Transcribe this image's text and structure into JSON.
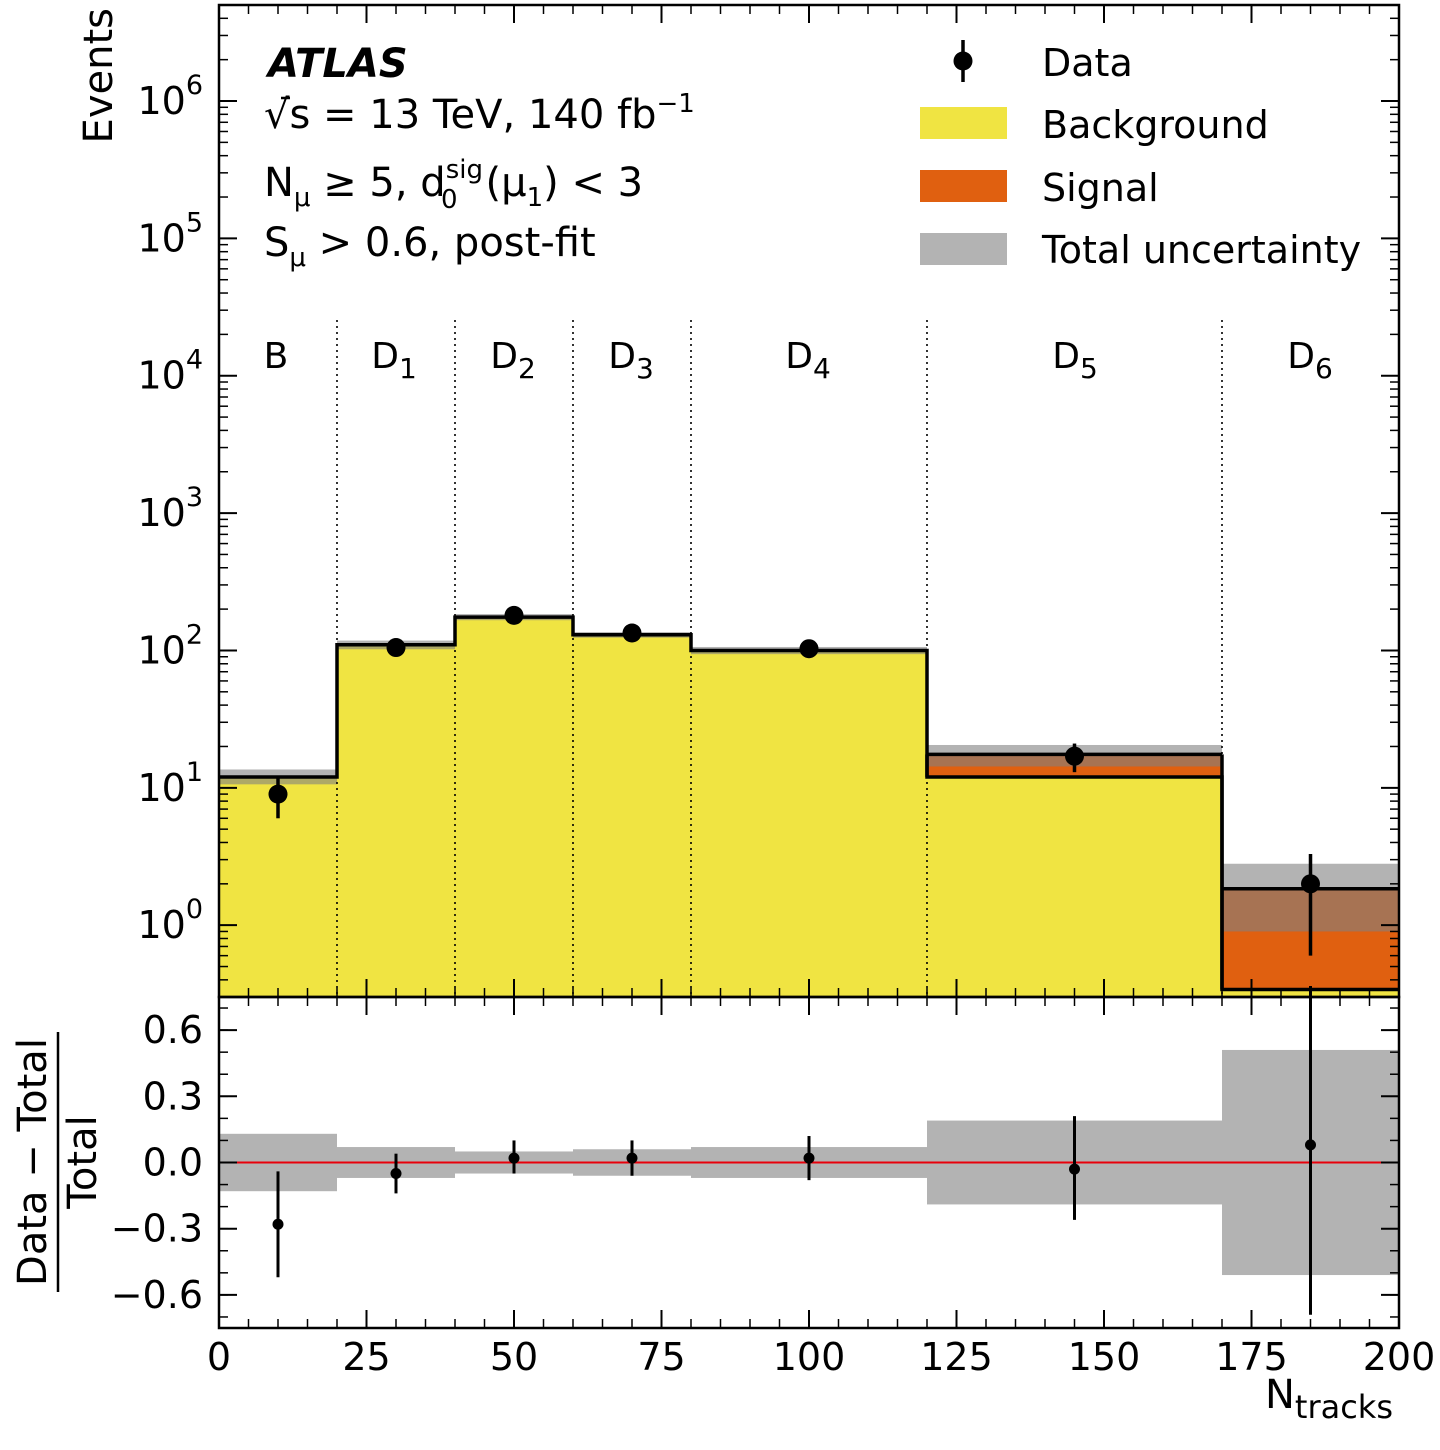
{
  "chart_data": [
    {
      "type": "histogram-stacked",
      "panel": "main",
      "ylabel": "Events",
      "yscale": "log",
      "ylim": [
        0.3,
        5000000
      ],
      "yticks": [
        1,
        10,
        100,
        1000,
        10000,
        100000,
        1000000
      ],
      "xlim": [
        0,
        200
      ],
      "bin_edges": [
        0,
        20,
        40,
        60,
        80,
        120,
        170,
        200
      ],
      "regions": [
        "B",
        "D1",
        "D2",
        "D3",
        "D4",
        "D5",
        "D6"
      ],
      "series": [
        {
          "name": "Background",
          "color": "#f0e442",
          "values": [
            12,
            110,
            175,
            130,
            100,
            12,
            0.34
          ]
        },
        {
          "name": "Signal",
          "color": "#e06010",
          "values": [
            0,
            0,
            0,
            0,
            0,
            5.5,
            1.5
          ]
        },
        {
          "name": "Total uncertainty",
          "color": "#b3b3b3",
          "low": [
            10.6,
            102,
            166,
            124,
            94,
            14.3,
            0.9
          ],
          "high": [
            13.6,
            118,
            184,
            136,
            106,
            20.5,
            2.8
          ]
        }
      ],
      "total": [
        12,
        110,
        175,
        130,
        100,
        17.5,
        1.84
      ],
      "data": {
        "name": "Data",
        "x": [
          10,
          30,
          50,
          70,
          100,
          145,
          185
        ],
        "y": [
          9,
          105,
          180,
          134,
          103,
          17,
          2
        ],
        "err_low": [
          6,
          95,
          167,
          122,
          93,
          13,
          0.6
        ],
        "err_high": [
          12,
          115,
          193,
          146,
          113,
          21,
          3.3
        ]
      },
      "legend": [
        "Data",
        "Background",
        "Signal",
        "Total uncertainty"
      ],
      "legend_position": "top-right",
      "annotations": {
        "experiment": "ATLAS",
        "energy_pre": "√",
        "energy_s": "s",
        "energy_post": " =  13 TeV, 140 fb",
        "energy_exp": "−1",
        "cut1_a": "N",
        "cut1_a_sub": "μ",
        "cut1_b": " ≥ 5, d",
        "cut1_b_sup": "sig",
        "cut1_b_sub": "0",
        "cut1_c": "(μ",
        "cut1_c_sub": "1",
        "cut1_d": ") < 3",
        "cut2_a": "S",
        "cut2_a_sub": "μ",
        "cut2_b": " > 0.6, post-fit"
      }
    },
    {
      "type": "ratio",
      "panel": "ratio",
      "ylabel_num": "Data − Total",
      "ylabel_den": "Total",
      "xlabel_main": "N",
      "xlabel_sub": "tracks",
      "ylim": [
        -0.75,
        0.75
      ],
      "yticks": [
        -0.6,
        -0.3,
        0.0,
        0.3,
        0.6
      ],
      "ytick_labels": [
        "−0.6",
        "−0.3",
        "0.0",
        "0.3",
        "0.6"
      ],
      "xticks": [
        0,
        25,
        50,
        75,
        100,
        125,
        150,
        175,
        200
      ],
      "uncertainty_band": {
        "low": [
          -0.13,
          -0.07,
          -0.05,
          -0.06,
          -0.07,
          -0.19,
          -0.51
        ],
        "high": [
          0.13,
          0.07,
          0.05,
          0.06,
          0.07,
          0.19,
          0.51
        ]
      },
      "points": {
        "x": [
          10,
          30,
          50,
          70,
          100,
          145,
          185
        ],
        "y": [
          -0.28,
          -0.05,
          0.02,
          0.02,
          0.02,
          -0.03,
          0.08
        ],
        "err_low": [
          -0.52,
          -0.14,
          -0.05,
          -0.06,
          -0.08,
          -0.26,
          -0.69
        ],
        "err_high": [
          -0.04,
          0.04,
          0.1,
          0.1,
          0.12,
          0.21,
          0.8
        ]
      },
      "reference_line": 0,
      "reference_color": "#e8000b"
    }
  ]
}
